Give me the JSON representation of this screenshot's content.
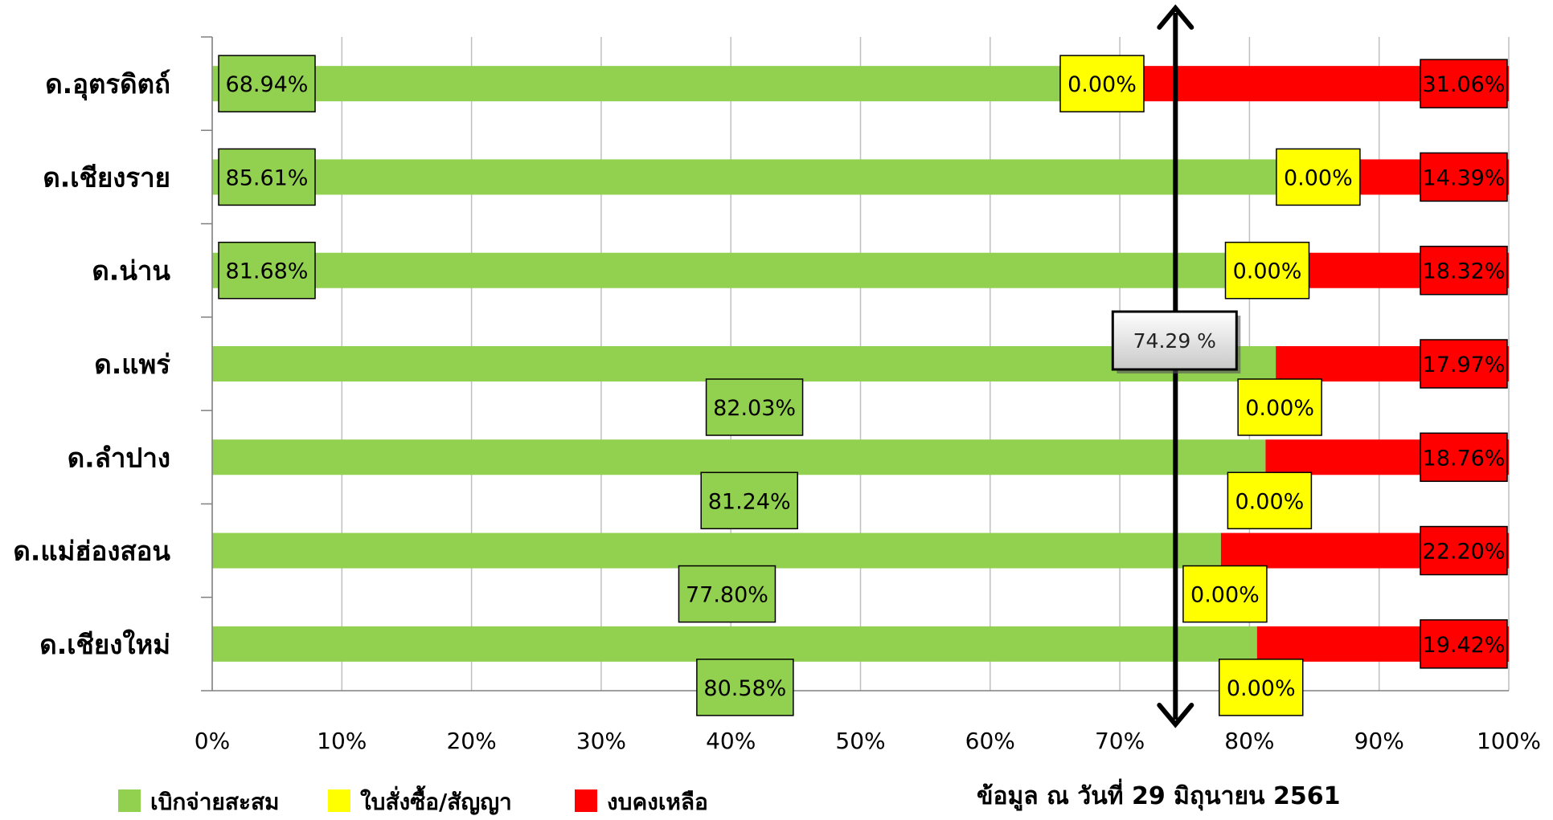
{
  "chart_data": {
    "type": "bar",
    "orientation": "horizontal",
    "stacked": true,
    "categories": [
      "ด.อุตรดิตถ์",
      "ด.เชียงราย",
      "ด.น่าน",
      "ด.แพร่",
      "ด.ลำปาง",
      "ด.แม่ฮ่องสอน",
      "ด.เชียงใหม่"
    ],
    "series": [
      {
        "name": "เบิกจ่ายสะสม",
        "color": "#92D050",
        "values": [
          68.94,
          85.61,
          81.68,
          82.03,
          81.24,
          77.8,
          80.58
        ],
        "labels": [
          "68.94%",
          "85.61%",
          "81.68%",
          "82.03%",
          "81.24%",
          "77.80%",
          "80.58%"
        ]
      },
      {
        "name": "ใบสั่งซื้อ/สัญญา",
        "color": "#FFFF00",
        "values": [
          0,
          0,
          0,
          0,
          0,
          0,
          0
        ],
        "labels": [
          "0.00%",
          "0.00%",
          "0.00%",
          "0.00%",
          "0.00%",
          "0.00%",
          "0.00%"
        ]
      },
      {
        "name": "งบคงเหลือ",
        "color": "#FF0000",
        "values": [
          31.06,
          14.39,
          18.32,
          17.97,
          18.76,
          22.2,
          19.42
        ],
        "labels": [
          "31.06%",
          "14.39%",
          "18.32%",
          "17.97%",
          "18.76%",
          "22.20%",
          "19.42%"
        ]
      }
    ],
    "xlim": [
      0,
      100
    ],
    "x_ticks": [
      "0%",
      "10%",
      "20%",
      "30%",
      "40%",
      "50%",
      "60%",
      "70%",
      "80%",
      "90%",
      "100%"
    ],
    "grid": true,
    "legend_position": "bottom-left",
    "reference_line": {
      "value": 74.29,
      "label": "74.29 %"
    },
    "annotation": "ข้อมูล ณ วันที่ 29 มิถุนายน 2561"
  }
}
